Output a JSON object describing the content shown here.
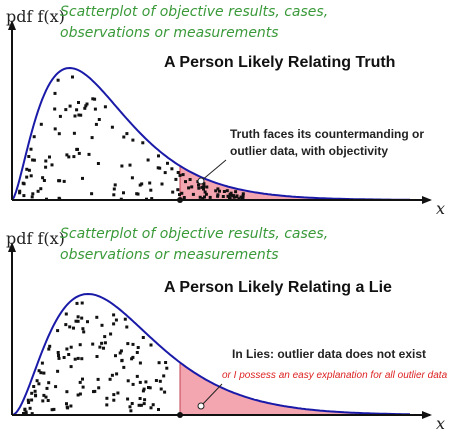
{
  "panels": [
    {
      "y_label": "pdf f(x)",
      "x_label": "x",
      "caption": [
        "Scatterplot of objective results, cases,",
        "observations or measurements"
      ],
      "title": "A Person Likely Relating Truth",
      "annotation": [
        "Truth faces its countermanding or",
        "outlier data, with objectivity"
      ]
    },
    {
      "y_label": "pdf f(x)",
      "x_label": "x",
      "caption": [
        "Scatterplot of objective results, cases,",
        "observations or measurements"
      ],
      "title": "A Person Likely Relating a Lie",
      "annotation": [
        "In Lies: outlier data does not exist",
        "or I possess an easy explanation for all outlier data"
      ]
    }
  ]
}
